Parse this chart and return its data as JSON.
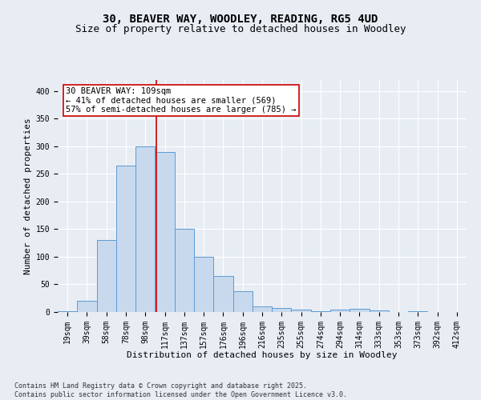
{
  "title": "30, BEAVER WAY, WOODLEY, READING, RG5 4UD",
  "subtitle": "Size of property relative to detached houses in Woodley",
  "xlabel": "Distribution of detached houses by size in Woodley",
  "ylabel": "Number of detached properties",
  "bar_labels": [
    "19sqm",
    "39sqm",
    "58sqm",
    "78sqm",
    "98sqm",
    "117sqm",
    "137sqm",
    "157sqm",
    "176sqm",
    "196sqm",
    "216sqm",
    "235sqm",
    "255sqm",
    "274sqm",
    "294sqm",
    "314sqm",
    "333sqm",
    "353sqm",
    "373sqm",
    "392sqm",
    "412sqm"
  ],
  "bar_values": [
    2,
    20,
    130,
    265,
    300,
    290,
    150,
    100,
    65,
    38,
    10,
    7,
    5,
    2,
    5,
    6,
    3,
    0,
    2,
    0,
    0
  ],
  "bar_color": "#c9d9ed",
  "bar_edge_color": "#5b9bd5",
  "background_color": "#e8edf4",
  "grid_color": "#ffffff",
  "annotation_text": "30 BEAVER WAY: 109sqm\n← 41% of detached houses are smaller (569)\n57% of semi-detached houses are larger (785) →",
  "annotation_box_color": "#ffffff",
  "annotation_box_edge_color": "#cc0000",
  "vline_color": "#cc0000",
  "vline_x": 4.55,
  "ylim": [
    0,
    420
  ],
  "yticks": [
    0,
    50,
    100,
    150,
    200,
    250,
    300,
    350,
    400
  ],
  "footnote": "Contains HM Land Registry data © Crown copyright and database right 2025.\nContains public sector information licensed under the Open Government Licence v3.0.",
  "title_fontsize": 10,
  "subtitle_fontsize": 9,
  "xlabel_fontsize": 8,
  "ylabel_fontsize": 8,
  "tick_fontsize": 7,
  "annotation_fontsize": 7.5,
  "footnote_fontsize": 6
}
